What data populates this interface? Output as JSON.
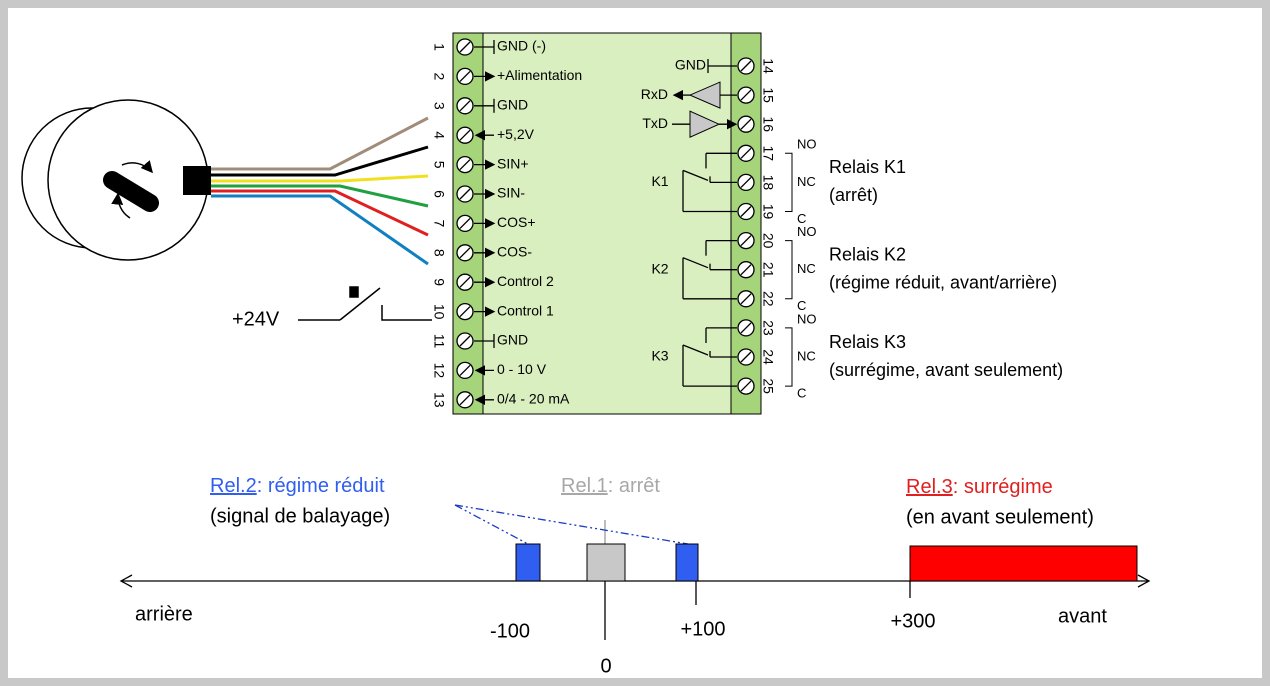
{
  "left_block": {
    "terminals": [
      {
        "number": "1",
        "label": "GND (-)"
      },
      {
        "number": "2",
        "label": "+Alimentation"
      },
      {
        "number": "3",
        "label": "GND"
      },
      {
        "number": "4",
        "label": "+5,2V"
      },
      {
        "number": "5",
        "label": "SIN+"
      },
      {
        "number": "6",
        "label": "SIN-"
      },
      {
        "number": "7",
        "label": "COS+"
      },
      {
        "number": "8",
        "label": "COS-"
      },
      {
        "number": "9",
        "label": "Control 2"
      },
      {
        "number": "10",
        "label": "Control 1"
      },
      {
        "number": "11",
        "label": "GND"
      },
      {
        "number": "12",
        "label": "0 - 10 V"
      },
      {
        "number": "13",
        "label": "0/4 - 20 mA"
      }
    ]
  },
  "right_block": {
    "terminals": [
      "14",
      "15",
      "16",
      "17",
      "18",
      "19",
      "20",
      "21",
      "22",
      "23",
      "24",
      "25"
    ],
    "signals": [
      "GND",
      "RxD",
      "TxD"
    ],
    "relays": [
      {
        "coil": "K1",
        "contacts": [
          "NO",
          "NC",
          "C"
        ],
        "name": "Relais K1",
        "description": "(arrêt)"
      },
      {
        "coil": "K2",
        "contacts": [
          "NO",
          "NC",
          "C"
        ],
        "name": "Relais K2",
        "description": "(régime réduit, avant/arrière)"
      },
      {
        "coil": "K3",
        "contacts": [
          "NO",
          "NC",
          "C"
        ],
        "name": "Relais K3",
        "description": "(surrégime, avant seulement)"
      }
    ]
  },
  "supply": "+24V",
  "speed_diagram": {
    "zones": [
      {
        "link": "Rel.2",
        "text": ": régime réduit",
        "note": "(signal de balayage)"
      },
      {
        "link": "Rel.1",
        "text": ": arrêt"
      },
      {
        "link": "Rel.3",
        "text": ": surrégime",
        "note": "(en avant seulement)"
      }
    ],
    "backward": "arrière",
    "forward": "avant",
    "marks": [
      "-100",
      "0",
      "+100",
      "+300"
    ]
  }
}
